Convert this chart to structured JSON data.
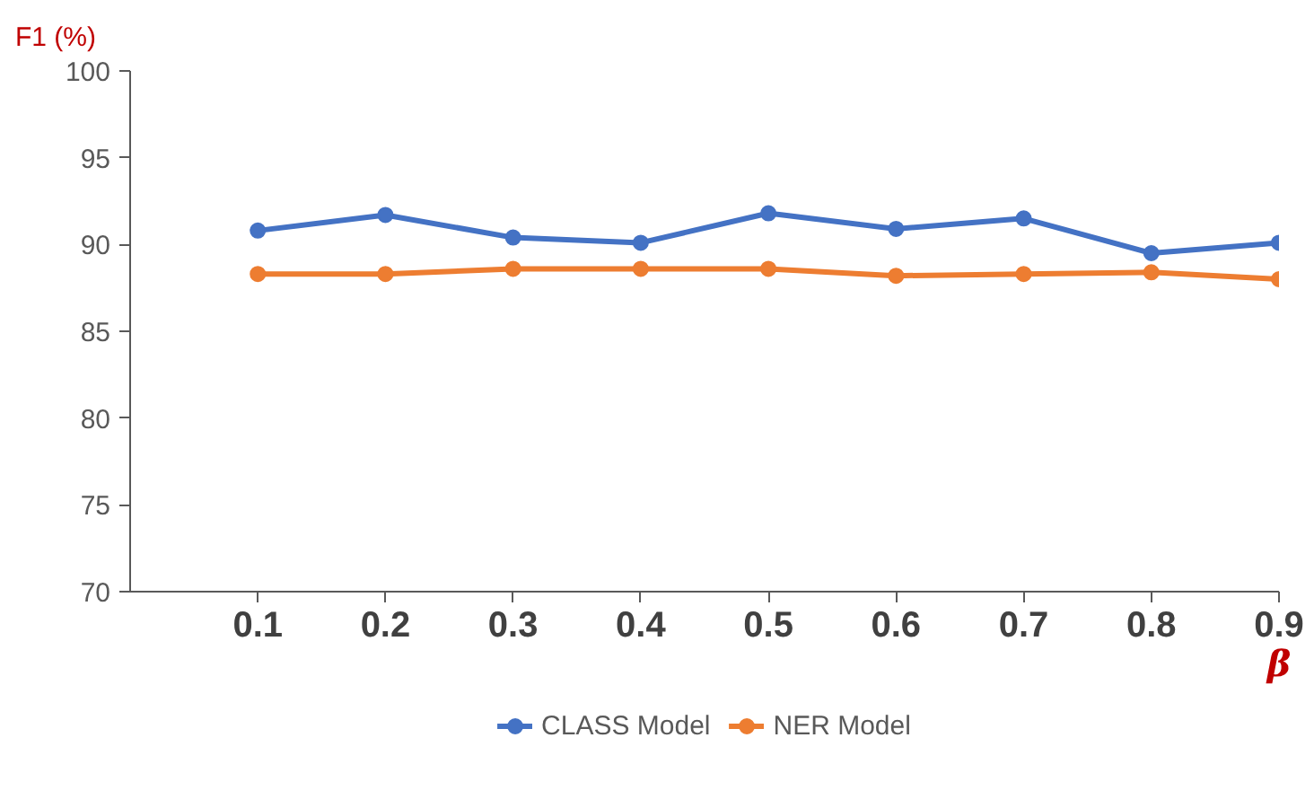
{
  "chart_data": {
    "type": "line",
    "ylabel": "F1 (%)",
    "xlabel": "β",
    "x": [
      0.1,
      0.2,
      0.3,
      0.4,
      0.5,
      0.6,
      0.7,
      0.8,
      0.9
    ],
    "series": [
      {
        "name": "CLASS Model",
        "color": "#4472c4",
        "values": [
          90.8,
          91.7,
          90.4,
          90.1,
          91.8,
          90.9,
          91.5,
          89.5,
          90.1
        ]
      },
      {
        "name": "NER Model",
        "color": "#ed7d31",
        "values": [
          88.3,
          88.3,
          88.6,
          88.6,
          88.6,
          88.2,
          88.3,
          88.4,
          88.0
        ]
      }
    ],
    "xlim": [
      0,
      0.9
    ],
    "xticks": [
      {
        "value": 0.1,
        "label": "0.1"
      },
      {
        "value": 0.2,
        "label": "0.2"
      },
      {
        "value": 0.3,
        "label": "0.3"
      },
      {
        "value": 0.4,
        "label": "0.4"
      },
      {
        "value": 0.5,
        "label": "0.5"
      },
      {
        "value": 0.6,
        "label": "0.6"
      },
      {
        "value": 0.7,
        "label": "0.7"
      },
      {
        "value": 0.8,
        "label": "0.8"
      },
      {
        "value": 0.9,
        "label": "0.9"
      }
    ],
    "ylim": [
      70,
      100
    ],
    "yticks": [
      70,
      75,
      80,
      85,
      90,
      95,
      100
    ],
    "grid": false,
    "legend": "bottom",
    "marker": "circle",
    "line_style": "solid"
  }
}
